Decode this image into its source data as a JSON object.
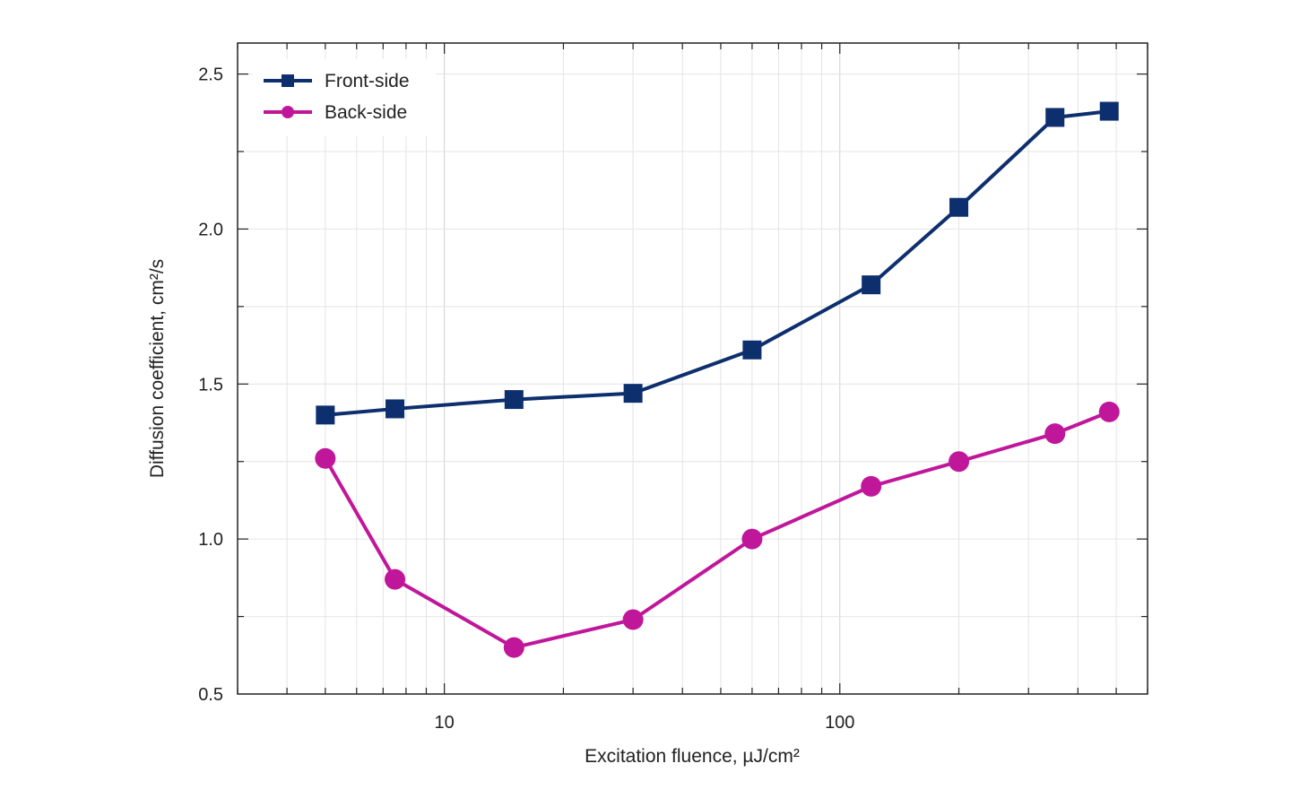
{
  "chart_data": {
    "type": "line",
    "xlabel": "Excitation fluence, µJ/cm²",
    "ylabel": "Diffusion coefficient, cm²/s",
    "xscale": "log",
    "xlim": [
      3,
      600
    ],
    "ylim": [
      0.5,
      2.6
    ],
    "xticks": [
      {
        "value": 10,
        "label": "10"
      },
      {
        "value": 100,
        "label": "100"
      }
    ],
    "yticks": [
      {
        "value": 0.5,
        "label": "0.5"
      },
      {
        "value": 1.0,
        "label": "1.0"
      },
      {
        "value": 1.5,
        "label": "1.5"
      },
      {
        "value": 2.0,
        "label": "2.0"
      },
      {
        "value": 2.5,
        "label": "2.5"
      }
    ],
    "grid": true,
    "legend_position": "top-left",
    "series": [
      {
        "name": "Front-side",
        "marker": "square",
        "color": "#0d2f6e",
        "x": [
          5,
          7.5,
          15,
          30,
          60,
          120,
          200,
          350,
          480
        ],
        "y": [
          1.4,
          1.42,
          1.45,
          1.47,
          1.61,
          1.82,
          2.07,
          2.36,
          2.38
        ]
      },
      {
        "name": "Back-side",
        "marker": "circle",
        "color": "#c0179a",
        "x": [
          5,
          7.5,
          15,
          30,
          60,
          120,
          200,
          350,
          480
        ],
        "y": [
          1.26,
          0.87,
          0.65,
          0.74,
          1.0,
          1.17,
          1.25,
          1.34,
          1.41
        ]
      }
    ]
  }
}
